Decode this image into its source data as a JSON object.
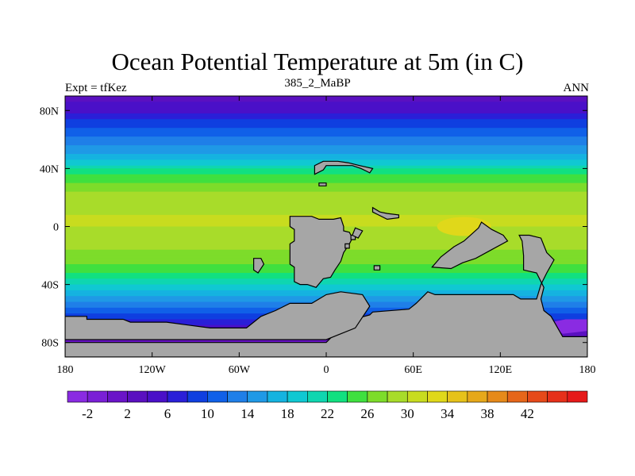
{
  "title": "Ocean Potential Temperature at 5m (in C)",
  "subtitle": "385_2_MaBP",
  "left_label": "Expt = tfKez",
  "right_label": "ANN",
  "land_color": "#a6a6a6",
  "map": {
    "lon_range": [
      -180,
      180
    ],
    "lat_range": [
      -90,
      90
    ],
    "x_ticks": [
      {
        "lon": -180,
        "label": "180"
      },
      {
        "lon": -120,
        "label": "120W"
      },
      {
        "lon": -60,
        "label": "60W"
      },
      {
        "lon": 0,
        "label": "0"
      },
      {
        "lon": 60,
        "label": "60E"
      },
      {
        "lon": 120,
        "label": "120E"
      },
      {
        "lon": 180,
        "label": "180"
      }
    ],
    "y_ticks": [
      {
        "lat": 80,
        "label": "80N"
      },
      {
        "lat": 40,
        "label": "40N"
      },
      {
        "lat": 0,
        "label": "0"
      },
      {
        "lat": -40,
        "label": "40S"
      },
      {
        "lat": -80,
        "label": "80S"
      }
    ],
    "zonal_temperature": [
      {
        "lat": 90,
        "value": 3
      },
      {
        "lat": 80,
        "value": 5
      },
      {
        "lat": 72,
        "value": 9
      },
      {
        "lat": 62,
        "value": 12
      },
      {
        "lat": 52,
        "value": 15
      },
      {
        "lat": 44,
        "value": 19
      },
      {
        "lat": 36,
        "value": 24
      },
      {
        "lat": 28,
        "value": 27
      },
      {
        "lat": 18,
        "value": 29
      },
      {
        "lat": 8,
        "value": 30
      },
      {
        "lat": 0,
        "value": 30
      },
      {
        "lat": -10,
        "value": 29
      },
      {
        "lat": -20,
        "value": 27
      },
      {
        "lat": -30,
        "value": 25
      },
      {
        "lat": -38,
        "value": 21
      },
      {
        "lat": -46,
        "value": 17
      },
      {
        "lat": -54,
        "value": 13
      },
      {
        "lat": -62,
        "value": 9
      },
      {
        "lat": -70,
        "value": 5
      },
      {
        "lat": -80,
        "value": 0
      },
      {
        "lat": -90,
        "value": -2
      }
    ],
    "warm_pool": {
      "lon": 95,
      "lat": 0,
      "value": 33
    },
    "land_polygons": [
      {
        "name": "africa",
        "points": [
          [
            -25,
            7
          ],
          [
            -25,
            0
          ],
          [
            -22,
            -2
          ],
          [
            -22,
            -10
          ],
          [
            -25,
            -12
          ],
          [
            -25,
            -26
          ],
          [
            -22,
            -28
          ],
          [
            -22,
            -38
          ],
          [
            -18,
            -40
          ],
          [
            -13,
            -40
          ],
          [
            -7,
            -42
          ],
          [
            -2,
            -36
          ],
          [
            3,
            -35
          ],
          [
            6,
            -30
          ],
          [
            10,
            -24
          ],
          [
            12,
            -18
          ],
          [
            16,
            -12
          ],
          [
            18,
            -8
          ],
          [
            16,
            -4
          ],
          [
            12,
            -3
          ],
          [
            12,
            0
          ],
          [
            10,
            6
          ],
          [
            5,
            5
          ],
          [
            -5,
            5
          ],
          [
            -10,
            7
          ]
        ]
      },
      {
        "name": "south-america-patch",
        "points": [
          [
            -50,
            -22
          ],
          [
            -45,
            -22
          ],
          [
            -43,
            -26
          ],
          [
            -47,
            -32
          ],
          [
            -50,
            -30
          ]
        ]
      },
      {
        "name": "europe",
        "points": [
          [
            -8,
            36
          ],
          [
            -2,
            39
          ],
          [
            0,
            42
          ],
          [
            10,
            42
          ],
          [
            18,
            42
          ],
          [
            24,
            40
          ],
          [
            28,
            38
          ],
          [
            30,
            37
          ],
          [
            32,
            40
          ],
          [
            23,
            42
          ],
          [
            15,
            44
          ],
          [
            8,
            45
          ],
          [
            -2,
            45
          ],
          [
            -8,
            42
          ]
        ]
      },
      {
        "name": "europe-islands",
        "points": [
          [
            -5,
            28
          ],
          [
            0,
            28
          ],
          [
            0,
            30
          ],
          [
            -5,
            30
          ]
        ]
      },
      {
        "name": "small-island-a",
        "points": [
          [
            17,
            -6
          ],
          [
            20,
            -6
          ],
          [
            20,
            -9
          ],
          [
            17,
            -9
          ]
        ]
      },
      {
        "name": "small-island-b",
        "points": [
          [
            33,
            -27
          ],
          [
            37,
            -27
          ],
          [
            37,
            -30
          ],
          [
            33,
            -30
          ]
        ]
      },
      {
        "name": "small-island-c",
        "points": [
          [
            13,
            -12
          ],
          [
            16,
            -12
          ],
          [
            16,
            -15
          ],
          [
            13,
            -15
          ]
        ]
      },
      {
        "name": "madagascar-like",
        "points": [
          [
            20,
            -1
          ],
          [
            25,
            -3
          ],
          [
            22,
            -8
          ],
          [
            18,
            -6
          ]
        ]
      },
      {
        "name": "south-arabia",
        "points": [
          [
            32,
            13
          ],
          [
            37,
            10
          ],
          [
            42,
            9
          ],
          [
            50,
            8
          ],
          [
            50,
            6
          ],
          [
            42,
            5
          ],
          [
            36,
            8
          ],
          [
            32,
            10
          ]
        ]
      },
      {
        "name": "indian-landmass",
        "points": [
          [
            73,
            -28
          ],
          [
            79,
            -21
          ],
          [
            88,
            -14
          ],
          [
            95,
            -10
          ],
          [
            105,
            -1
          ],
          [
            107,
            3
          ],
          [
            114,
            -2
          ],
          [
            122,
            -6
          ],
          [
            125,
            -10
          ],
          [
            114,
            -16
          ],
          [
            103,
            -22
          ],
          [
            94,
            -25
          ],
          [
            86,
            -29
          ]
        ]
      },
      {
        "name": "australia",
        "points": [
          [
            133,
            -6
          ],
          [
            140,
            -6
          ],
          [
            148,
            -8
          ],
          [
            152,
            -18
          ],
          [
            157,
            -23
          ],
          [
            152,
            -32
          ],
          [
            148,
            -40
          ],
          [
            145,
            -50
          ],
          [
            134,
            -50
          ],
          [
            129,
            -47
          ],
          [
            118,
            -47
          ],
          [
            75,
            -47
          ],
          [
            70,
            -45
          ],
          [
            68,
            -47
          ],
          [
            62,
            -53
          ],
          [
            57,
            -57
          ],
          [
            32,
            -59
          ],
          [
            30,
            -61
          ],
          [
            15,
            -65
          ],
          [
            0,
            -80
          ],
          [
            -180,
            -80
          ],
          [
            -180,
            -90
          ],
          [
            180,
            -90
          ],
          [
            180,
            -76
          ],
          [
            163,
            -76
          ],
          [
            155,
            -62
          ],
          [
            150,
            -58
          ],
          [
            148,
            -50
          ],
          [
            150,
            -42
          ],
          [
            145,
            -32
          ],
          [
            136,
            -30
          ],
          [
            136,
            -20
          ],
          [
            135,
            -10
          ]
        ]
      },
      {
        "name": "antarctic-patch-west",
        "points": [
          [
            -180,
            -62
          ],
          [
            -165,
            -62
          ],
          [
            -165,
            -64
          ],
          [
            -140,
            -64
          ],
          [
            -135,
            -66
          ],
          [
            -110,
            -66
          ],
          [
            -95,
            -68
          ],
          [
            -80,
            -70
          ],
          [
            -55,
            -70
          ],
          [
            -45,
            -62
          ],
          [
            -35,
            -58
          ],
          [
            -25,
            -53
          ],
          [
            -10,
            -53
          ],
          [
            0,
            -47
          ],
          [
            10,
            -45
          ],
          [
            25,
            -47
          ],
          [
            30,
            -55
          ],
          [
            20,
            -70
          ],
          [
            0,
            -78
          ],
          [
            -180,
            -78
          ]
        ]
      }
    ],
    "cold_patches": [
      {
        "name": "antarctic-cold-west",
        "points": [
          [
            -176,
            -64
          ],
          [
            -150,
            -64
          ],
          [
            -136,
            -68
          ],
          [
            -110,
            -68
          ],
          [
            -112,
            -74
          ],
          [
            -140,
            -78
          ],
          [
            -176,
            -76
          ]
        ]
      },
      {
        "name": "antarctic-cold-ross",
        "points": [
          [
            -70,
            -70
          ],
          [
            -40,
            -70
          ],
          [
            -40,
            -75
          ],
          [
            -70,
            -75
          ]
        ]
      },
      {
        "name": "antarctic-cold-east",
        "points": [
          [
            155,
            -66
          ],
          [
            165,
            -64
          ],
          [
            180,
            -64
          ],
          [
            180,
            -72
          ],
          [
            163,
            -74
          ],
          [
            157,
            -70
          ]
        ]
      }
    ]
  },
  "colorbar": {
    "colors": [
      "#8a2be2",
      "#7a1fd6",
      "#6a14c8",
      "#5a10c0",
      "#4a10c8",
      "#2a1fd8",
      "#0f3fe0",
      "#1060e8",
      "#1f7fe8",
      "#1f99e6",
      "#15b3e0",
      "#10c8d2",
      "#0fd6b0",
      "#11e080",
      "#3fe03f",
      "#7ddc2a",
      "#a8dc2a",
      "#c8dc1f",
      "#e0d81a",
      "#e6c21a",
      "#e6a81a",
      "#e68a1a",
      "#e6661a",
      "#e64a1a",
      "#e6301a",
      "#e61a1a"
    ],
    "min": -4,
    "step": 2,
    "ticks": [
      {
        "value": -2,
        "label": "-2"
      },
      {
        "value": 2,
        "label": "2"
      },
      {
        "value": 6,
        "label": "6"
      },
      {
        "value": 10,
        "label": "10"
      },
      {
        "value": 14,
        "label": "14"
      },
      {
        "value": 18,
        "label": "18"
      },
      {
        "value": 22,
        "label": "22"
      },
      {
        "value": 26,
        "label": "26"
      },
      {
        "value": 30,
        "label": "30"
      },
      {
        "value": 34,
        "label": "34"
      },
      {
        "value": 38,
        "label": "38"
      },
      {
        "value": 42,
        "label": "42"
      }
    ]
  }
}
